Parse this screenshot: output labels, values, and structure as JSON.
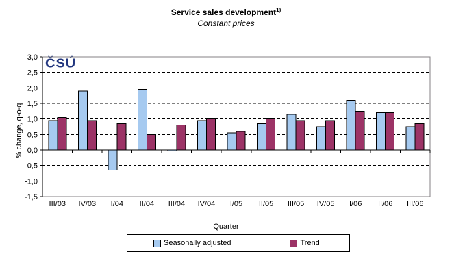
{
  "header": {
    "title": "Service sales development",
    "footnote_marker": "1)",
    "subtitle": "Constant prices"
  },
  "logo": {
    "text": "ČSÚ",
    "color": "#21357E"
  },
  "chart_data": {
    "type": "bar",
    "title": "Service sales development",
    "subtitle": "Constant prices",
    "xlabel": "Quarter",
    "ylabel": "% change, q-o-q",
    "ylim": [
      -1.5,
      3.0
    ],
    "ytick_step": 0.5,
    "ytick_labels": [
      "3,0",
      "2,5",
      "2,0",
      "1,5",
      "1,0",
      "0,5",
      "0,0",
      "-0,5",
      "-1,0",
      "-1,5"
    ],
    "grid": "horizontal-dashed",
    "legend_position": "bottom",
    "categories": [
      "III/03",
      "IV/03",
      "I/04",
      "II/04",
      "III/04",
      "IV/04",
      "I/05",
      "II/05",
      "III/05",
      "IV/05",
      "I/06",
      "II/06",
      "III/06"
    ],
    "series": [
      {
        "name": "Seasonally adjusted",
        "color": "#A6CAF0",
        "border_color": "#000000",
        "values": [
          0.95,
          1.9,
          -0.65,
          1.95,
          -0.03,
          0.95,
          0.55,
          0.85,
          1.15,
          0.75,
          1.6,
          1.2,
          0.75
        ]
      },
      {
        "name": "Trend",
        "color": "#9C3366",
        "border_color": "#000000",
        "values": [
          1.05,
          0.95,
          0.85,
          0.5,
          0.8,
          1.0,
          0.6,
          1.0,
          0.95,
          0.95,
          1.25,
          1.2,
          0.85
        ]
      }
    ]
  }
}
